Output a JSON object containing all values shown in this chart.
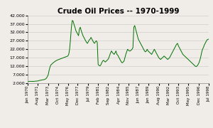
{
  "title": "Crude Oil Prices -- 1970-1999",
  "line_color": "#007000",
  "bg_color": "#f0ede8",
  "ylim": [
    2000,
    42000
  ],
  "yticks": [
    2000,
    7000,
    12000,
    17000,
    22000,
    27000,
    32000,
    37000,
    42000
  ],
  "xtick_labels": [
    "Jan 1970",
    "Aug 1971",
    "Mar 1973",
    "Oct 1974",
    "May 1976",
    "Dec 1977",
    "Jul 1979",
    "Feb 1981",
    "Sep 1982",
    "Apr 1984",
    "Nov 1985",
    "Jun 1987",
    "Jan 1989",
    "Aug 1990",
    "Mar 1992",
    "Oct 1993",
    "May 1995",
    "Dec 1996",
    "Jul 1998"
  ],
  "prices": [
    3000,
    3050,
    3100,
    3100,
    3100,
    3100,
    3050,
    3100,
    3150,
    3200,
    3250,
    3300,
    3400,
    3600,
    3700,
    3800,
    3900,
    4000,
    4100,
    4200,
    4500,
    5000,
    5800,
    7000,
    9500,
    11500,
    12800,
    13200,
    13800,
    14200,
    14600,
    15000,
    15300,
    15600,
    15800,
    16000,
    16200,
    16400,
    16600,
    16800,
    17000,
    17200,
    17400,
    17600,
    17800,
    18000,
    19000,
    22000,
    28000,
    35000,
    39000,
    38500,
    36500,
    35000,
    33000,
    32000,
    31000,
    30000,
    34000,
    35000,
    33000,
    31500,
    30000,
    29000,
    28000,
    27000,
    26000,
    25500,
    26500,
    27500,
    28000,
    29000,
    28000,
    27000,
    26000,
    25500,
    26500,
    27000,
    26000,
    13000,
    12500,
    12200,
    12800,
    14000,
    15000,
    15500,
    15000,
    14500,
    15000,
    15500,
    16000,
    17000,
    18500,
    20000,
    21000,
    20000,
    19500,
    19000,
    20000,
    21000,
    19000,
    18500,
    17500,
    16500,
    15500,
    14500,
    14000,
    14500,
    15000,
    17000,
    19000,
    20500,
    22000,
    21500,
    21000,
    21000,
    21500,
    22000,
    23000,
    35000,
    36000,
    34000,
    32000,
    30000,
    28000,
    27000,
    26000,
    25000,
    24000,
    23000,
    22000,
    21000,
    20500,
    21000,
    22000,
    21000,
    20500,
    20000,
    19500,
    19000,
    20000,
    21000,
    22000,
    21000,
    20000,
    19000,
    18000,
    17000,
    16500,
    16000,
    16500,
    17000,
    17500,
    18000,
    17500,
    17000,
    16500,
    16000,
    16500,
    17000,
    18000,
    19000,
    20000,
    21000,
    22000,
    23000,
    24000,
    25000,
    25500,
    24000,
    23000,
    22000,
    21000,
    20000,
    19000,
    18500,
    18000,
    17500,
    17000,
    16500,
    16000,
    15500,
    15000,
    14500,
    14000,
    13500,
    13000,
    12500,
    12000,
    11800,
    12200,
    13000,
    14000,
    15500,
    17500,
    20000,
    22000,
    23000,
    24500,
    25500,
    26500,
    27500,
    27800,
    28000
  ]
}
